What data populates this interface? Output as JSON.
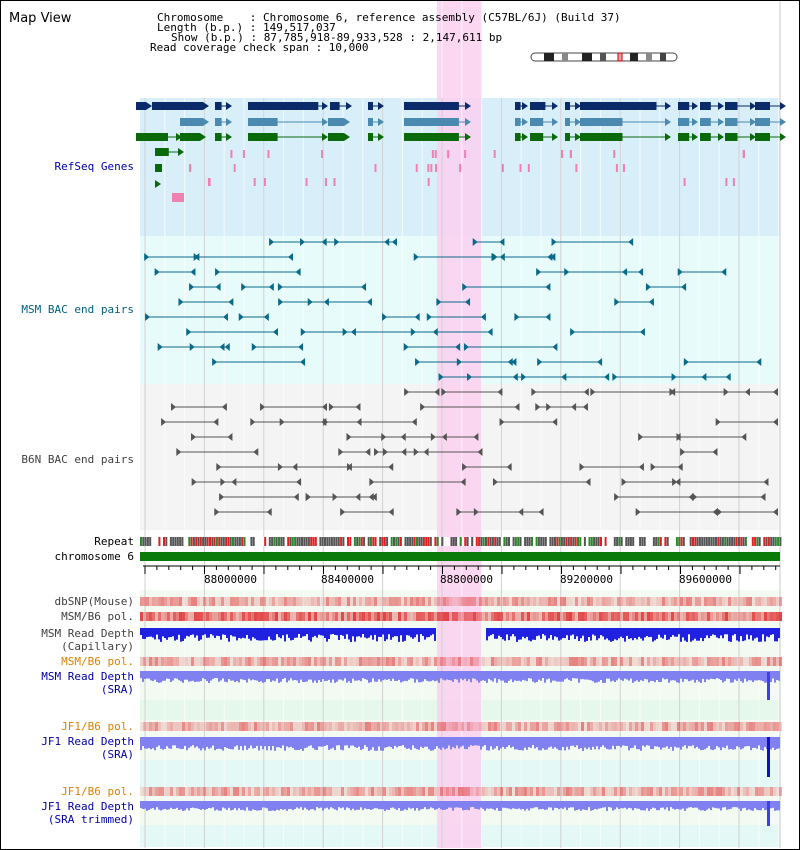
{
  "title": "Map View",
  "header": {
    "lines": [
      "Chromosome    : Chromosome 6, reference assembly (C57BL/6J) (Build 37)",
      "Length (b.p.) : 149,517,037",
      "Show (b.p.) : 87,785,918-89,933,528 : 2,147,611 bp",
      "Read coverage check span : 10,000"
    ]
  },
  "tracks": {
    "refseq": "RefSeq Genes",
    "msm_bac": "MSM BAC end pairs",
    "b6n_bac": "B6N BAC end pairs",
    "repeat": "Repeat",
    "chromosome": "chromosome 6",
    "dbsnp": "dbSNP(Mouse)",
    "msm_b6_pol_1": "MSM/B6 pol.",
    "msm_read_depth_cap_1": "MSM Read Depth",
    "msm_read_depth_cap_2": "(Capillary)",
    "msm_b6_pol_2": "MSM/B6 pol.",
    "msm_read_depth_sra_1": "MSM Read Depth",
    "msm_read_depth_sra_2": "(SRA)",
    "jf1_b6_pol_1": "JF1/B6 pol.",
    "jf1_read_depth_sra_1": "JF1 Read Depth",
    "jf1_read_depth_sra_2": "(SRA)",
    "jf1_b6_pol_2": "JF1/B6 pol.",
    "jf1_read_depth_trim_1": "JF1 Read Depth",
    "jf1_read_depth_trim_2": "(SRA trimmed)"
  },
  "axis": {
    "ticks": [
      "88000000",
      "88400000",
      "88800000",
      "89200000",
      "89600000"
    ]
  },
  "colors": {
    "refseq_bg": "#d8effa",
    "msm_bac_bg": "#e8fbfb",
    "b6n_bac_bg": "#f4f4f4",
    "highlight": "#fcd0f0",
    "gene_dark": "#0a2a6a",
    "gene_mid": "#4a8ab0",
    "gene_green": "#0a6a0a",
    "bac_teal": "#0a6a8a",
    "bac_gray": "#555555",
    "chromosome": "#0a7a0a",
    "read_depth_blue": "#2020e0",
    "read_depth_light": "#8080f0",
    "pol_red": "#e04040",
    "label_blue": "#0000a0",
    "label_orange": "#e08000",
    "label_teal": "#006080"
  }
}
